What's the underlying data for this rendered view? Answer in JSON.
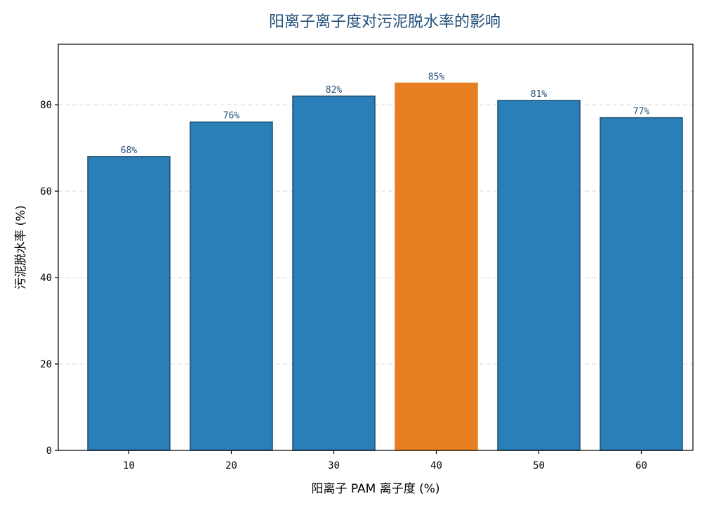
{
  "chart_data": {
    "type": "bar",
    "title": "阳离子离子度对污泥脱水率的影响",
    "xlabel": "阳离子 PAM 离子度 (%)",
    "ylabel": "污泥脱水率 (%)",
    "categories": [
      "10",
      "20",
      "30",
      "40",
      "50",
      "60"
    ],
    "values": [
      68,
      76,
      82,
      85,
      81,
      77
    ],
    "data_labels": [
      "68%",
      "76%",
      "82%",
      "85%",
      "81%",
      "77%"
    ],
    "ylim": [
      0,
      94
    ],
    "yticks": [
      0,
      20,
      40,
      60,
      80
    ],
    "grid": "horizontal dashed",
    "highlight_index": 3,
    "colors": {
      "bar": "#2a7fb8",
      "bar_edge": "#1c4f70",
      "highlight": "#e67e22",
      "label": "#1f4e79",
      "grid": "#d9d9d9"
    }
  }
}
